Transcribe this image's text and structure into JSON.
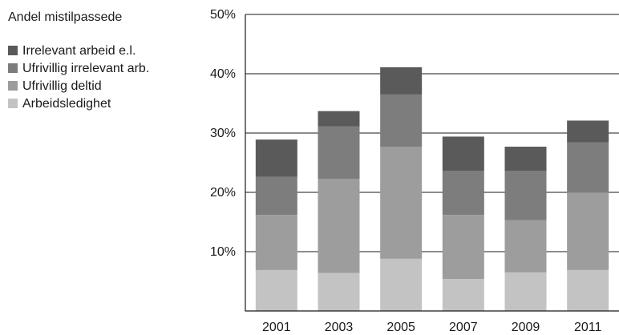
{
  "chart_data": {
    "type": "bar",
    "stacked": true,
    "title": "Andel mistilpassede",
    "xlabel": "",
    "ylabel": "",
    "categories": [
      "2001",
      "2003",
      "2005",
      "2007",
      "2009",
      "2011"
    ],
    "ylim": [
      0,
      50
    ],
    "yticks": [
      10,
      20,
      30,
      40,
      50
    ],
    "ytick_labels": [
      "10%",
      "20%",
      "30%",
      "40%",
      "50%"
    ],
    "grid": true,
    "legend_position": "top-left",
    "series": [
      {
        "name": "Arbeidsledighet",
        "color": "#c3c3c3",
        "values": [
          6.9,
          6.4,
          8.8,
          5.4,
          6.5,
          6.9
        ]
      },
      {
        "name": "Ufrivillig deltid",
        "color": "#9d9d9e",
        "values": [
          9.3,
          15.9,
          18.9,
          10.8,
          8.8,
          13.0
        ]
      },
      {
        "name": "Ufrivillig irrelevant arb.",
        "color": "#7d7d7e",
        "values": [
          6.4,
          8.8,
          8.8,
          7.4,
          8.3,
          8.5
        ]
      },
      {
        "name": "Irrelevant arbeid e.l.",
        "color": "#5a5a5b",
        "values": [
          6.3,
          2.6,
          4.6,
          5.8,
          4.1,
          3.7
        ]
      }
    ],
    "legend_order": [
      "Irrelevant arbeid e.l.",
      "Ufrivillig irrelevant arb.",
      "Ufrivillig deltid",
      "Arbeidsledighet"
    ]
  }
}
